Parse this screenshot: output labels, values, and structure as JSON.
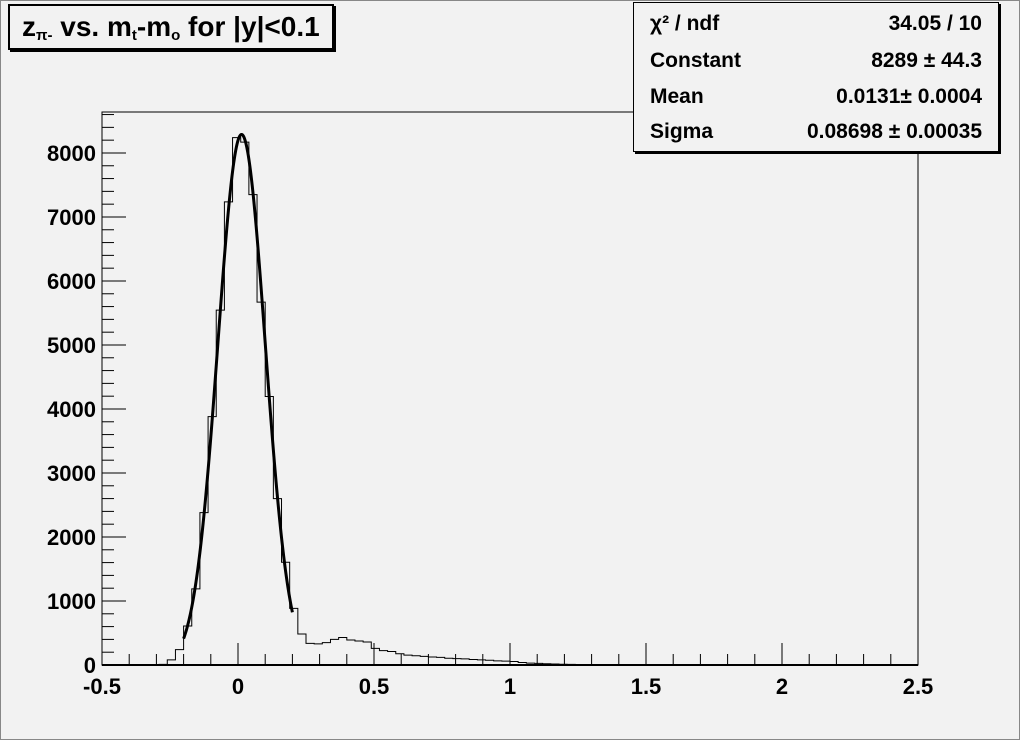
{
  "chart_data": {
    "type": "histogram",
    "title_parts": {
      "main": "z",
      "sub": "π-",
      "mid": " vs. m",
      "sub2": "t",
      "mid2": "-m",
      "sub3": "o",
      "tail": " for |y|<0.1"
    },
    "xlim": [
      -0.5,
      2.5
    ],
    "ylim": [
      0,
      8640
    ],
    "bin_width": 0.03,
    "bin_start": -0.5,
    "x_ticks": [
      "-0.5",
      "0",
      "0.5",
      "1",
      "1.5",
      "2",
      "2.5"
    ],
    "x_tick_values": [
      -0.5,
      0,
      0.5,
      1,
      1.5,
      2,
      2.5
    ],
    "y_ticks": [
      "0",
      "1000",
      "2000",
      "3000",
      "4000",
      "5000",
      "6000",
      "7000",
      "8000"
    ],
    "y_tick_values": [
      0,
      1000,
      2000,
      3000,
      4000,
      5000,
      6000,
      7000,
      8000
    ],
    "values": [
      0,
      0,
      0,
      0,
      0,
      0,
      0,
      10,
      80,
      240,
      610,
      1190,
      2380,
      3880,
      5545,
      7235,
      8240,
      8170,
      7350,
      5670,
      4195,
      2600,
      1605,
      885,
      484,
      338,
      330,
      350,
      400,
      430,
      390,
      375,
      360,
      260,
      225,
      210,
      175,
      155,
      145,
      135,
      125,
      120,
      105,
      100,
      95,
      85,
      80,
      75,
      65,
      60,
      55,
      40,
      30,
      25,
      20,
      15,
      12,
      10,
      8,
      6,
      5,
      4,
      4,
      3,
      3,
      2,
      2,
      2,
      2,
      1,
      1,
      1,
      1,
      1,
      0,
      0,
      0,
      0,
      0,
      0,
      0,
      0,
      0,
      0,
      0,
      0,
      0,
      0,
      0,
      0,
      0,
      0,
      0,
      0,
      0,
      0,
      0,
      0,
      0,
      0
    ],
    "fit": {
      "function": "gaus",
      "constant": 8289,
      "mean": 0.0131,
      "sigma": 0.08698,
      "range": [
        -0.2,
        0.2
      ],
      "color": "#000000"
    },
    "line_color": "#000000",
    "background": "#f2f2f2",
    "grid": false
  },
  "stats": {
    "rows": [
      {
        "key": "χ² / ndf",
        "value": "34.05 / 10"
      },
      {
        "key": "Constant",
        "value": "8289 ± 44.3"
      },
      {
        "key": "Mean",
        "value": "0.0131± 0.0004"
      },
      {
        "key": "Sigma",
        "value": "0.08698 ± 0.00035"
      }
    ]
  }
}
